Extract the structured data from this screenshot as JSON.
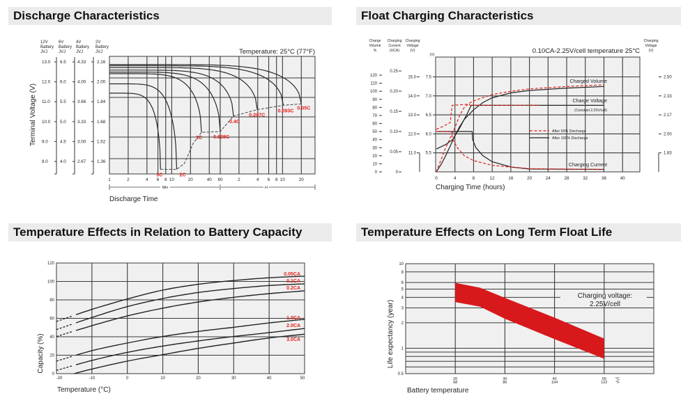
{
  "headers": {
    "discharge": "Discharge Characteristics",
    "float": "Float Charging Characteristics",
    "temp_capacity": "Temperature Effects in Relation to Battery Capacity",
    "float_life": "Temperature Effects on Long Term Float Life"
  },
  "chart_data": [
    {
      "type": "line",
      "title": "Temperature: 25°C (77°F)",
      "xlabel": "Discharge Time",
      "ylabel": "Terminal Voltage (V)",
      "x_scale": "log",
      "x_unit": "minutes",
      "x_tick_labels": [
        "1",
        "2",
        "4",
        "6",
        "8",
        "10",
        "20",
        "40",
        "60",
        "2",
        "4",
        "6",
        "8",
        "10",
        "20"
      ],
      "x_range_labels": [
        "Min",
        "H"
      ],
      "y_columns": [
        {
          "header": [
            "12V",
            "Battery",
            "JVJ"
          ],
          "ticks": [
            "13.0",
            "12.0",
            "11.0",
            "10.0",
            "9.0",
            "8.0"
          ]
        },
        {
          "header": [
            "6V",
            "Battery",
            "JVJ"
          ],
          "ticks": [
            "6.5",
            "6.0",
            "5.5",
            "5.0",
            "4.5",
            "4.0"
          ]
        },
        {
          "header": [
            "4V",
            "Battery",
            "JVJ"
          ],
          "ticks": [
            "4.33",
            "4.00",
            "3.66",
            "3.33",
            "3.00",
            "2.67"
          ]
        },
        {
          "header": [
            "2V",
            "Battery",
            "JVJ"
          ],
          "ticks": [
            "2.16",
            "2.00",
            "1.84",
            "1.68",
            "1.52",
            "1.36"
          ]
        }
      ],
      "ylim": [
        7.4,
        13.2
      ],
      "grid": true,
      "series": [
        {
          "name": "3C",
          "start_voltage": 11.43,
          "end_time_min": 6.6,
          "end_voltage": 7.6
        },
        {
          "name": "2C",
          "start_voltage": 11.9,
          "end_time_min": 12,
          "end_voltage": 7.6
        },
        {
          "name": "1C",
          "start_voltage": 12.41,
          "end_time_min": 30,
          "end_voltage": 9.46
        },
        {
          "name": "0.628C",
          "start_voltage": 12.49,
          "end_time_min": 60,
          "end_voltage": 9.5
        },
        {
          "name": "0.4C",
          "start_voltage": 12.59,
          "end_time_min": 98,
          "end_voltage": 10.28
        },
        {
          "name": "0.207C",
          "start_voltage": 12.72,
          "end_time_min": 236,
          "end_voltage": 10.6
        },
        {
          "name": "0.093C",
          "start_voltage": 12.81,
          "end_time_min": 617,
          "end_voltage": 10.82
        },
        {
          "name": "0.05C",
          "start_voltage": 12.87,
          "end_time_min": 1200,
          "end_voltage": 10.89
        }
      ],
      "cutoff_line": [
        [
          6.6,
          7.6
        ],
        [
          12,
          7.6
        ],
        [
          16,
          7.9
        ],
        [
          22,
          8.9
        ],
        [
          30,
          9.46
        ],
        [
          60,
          9.5
        ],
        [
          98,
          10.28
        ],
        [
          236,
          10.6
        ],
        [
          617,
          10.82
        ],
        [
          1200,
          10.89
        ]
      ],
      "label_color": "#e32119"
    },
    {
      "type": "line",
      "title": "0.10CA-2.25V/cell  temperature 25°C",
      "xlabel": "Charging Time (hours)",
      "xlim": [
        0,
        44
      ],
      "x_ticks": [
        "0",
        "4",
        "8",
        "12",
        "16",
        "20",
        "24",
        "28",
        "32",
        "36",
        "40"
      ],
      "axes": {
        "charge_volume": {
          "header": [
            "Charge",
            "Volume",
            "%"
          ],
          "ticks": [
            "0",
            "10",
            "20",
            "30",
            "40",
            "50",
            "60",
            "70",
            "80",
            "90",
            "100",
            "110",
            "120"
          ]
        },
        "charging_current": {
          "header": [
            "Charging",
            "Current",
            "(XCA)"
          ],
          "ticks": [
            "0",
            "0.05",
            "0.10",
            "0.15",
            "0.20",
            "0.25"
          ]
        },
        "charging_voltage_12v": {
          "header": [
            "Charging",
            "Voltage",
            "(V)"
          ],
          "ticks": [
            "11.0",
            "12.0",
            "13.0",
            "14.0",
            "15.0"
          ]
        },
        "charging_voltage_6v": {
          "header": [
            "(V)"
          ],
          "ticks": [
            "5.5",
            "6.0",
            "6.5",
            "7.0",
            "7.5"
          ]
        },
        "charging_voltage_cell": {
          "header": [
            "Charging",
            "Voltage",
            "(V)"
          ],
          "ticks": [
            "1.83",
            "2.00",
            "2.17",
            "2.33",
            "2.50"
          ]
        }
      },
      "curve_labels": {
        "volume": "Charged Volume",
        "voltage": "Charge Voltage",
        "voltage_note": "(Constant 2.25V/cell)",
        "current": "Charging Current"
      },
      "legend": [
        {
          "name": "After  50% Discharge",
          "color": "#e32119",
          "style": "dashed"
        },
        {
          "name": "After 100% Discharge",
          "color": "#222222",
          "style": "solid"
        }
      ],
      "legend_placement": "center-right",
      "series": [
        {
          "curve": "charged_volume_pct",
          "legend": 1,
          "points": [
            [
              0,
              0
            ],
            [
              1,
              9
            ],
            [
              2,
              20
            ],
            [
              3,
              32
            ],
            [
              4,
              45
            ],
            [
              5,
              56
            ],
            [
              6,
              65
            ],
            [
              8,
              77
            ],
            [
              10,
              86
            ],
            [
              12,
              92
            ],
            [
              16,
              98
            ],
            [
              20,
              101
            ],
            [
              28,
              104
            ],
            [
              36,
              106
            ]
          ]
        },
        {
          "curve": "charged_volume_pct",
          "legend": 0,
          "points": [
            [
              0,
              0
            ],
            [
              1,
              15
            ],
            [
              2,
              30
            ],
            [
              3,
              42
            ],
            [
              4,
              55
            ],
            [
              5,
              70
            ],
            [
              6,
              80
            ],
            [
              7,
              85
            ],
            [
              8,
              88
            ],
            [
              12,
              96
            ],
            [
              16,
              100
            ],
            [
              20,
              103
            ],
            [
              28,
              106
            ],
            [
              36,
              108
            ]
          ]
        },
        {
          "curve": "charge_voltage_6v",
          "legend": 1,
          "points": [
            [
              0,
              5.6
            ],
            [
              2,
              5.72
            ],
            [
              3.5,
              5.85
            ],
            [
              5,
              6.15
            ],
            [
              6.5,
              6.5
            ],
            [
              7.5,
              6.75
            ],
            [
              36,
              6.75
            ]
          ]
        },
        {
          "curve": "charge_voltage_6v",
          "legend": 0,
          "points": [
            [
              0,
              6.12
            ],
            [
              1.5,
              6.2
            ],
            [
              3,
              6.3
            ],
            [
              3.4,
              6.75
            ],
            [
              7,
              6.78
            ],
            [
              7.3,
              6.75
            ],
            [
              22,
              6.75
            ]
          ]
        },
        {
          "curve": "charging_current_ca",
          "legend": 1,
          "points": [
            [
              0,
              0.1
            ],
            [
              7.7,
              0.1
            ],
            [
              7.8,
              0.08
            ],
            [
              8.5,
              0.06
            ],
            [
              10,
              0.04
            ],
            [
              12,
              0.025
            ],
            [
              16,
              0.012
            ],
            [
              20,
              0.007
            ],
            [
              36,
              0.006
            ]
          ]
        },
        {
          "curve": "charging_current_ca",
          "legend": 0,
          "points": [
            [
              0,
              0.1
            ],
            [
              3.2,
              0.1
            ],
            [
              3.6,
              0.08
            ],
            [
              4.5,
              0.06
            ],
            [
              6,
              0.04
            ],
            [
              8,
              0.028
            ],
            [
              12,
              0.016
            ],
            [
              20,
              0.008
            ],
            [
              36,
              0.006
            ]
          ]
        }
      ],
      "grid": true
    },
    {
      "type": "line",
      "xlabel": "Temperature (°C)",
      "ylabel": "Capacity (%)",
      "xlim": [
        -20,
        50
      ],
      "ylim": [
        0,
        120
      ],
      "x_ticks": [
        "-20",
        "-10",
        "0",
        "10",
        "20",
        "30",
        "40",
        "50"
      ],
      "y_ticks": [
        "0",
        "20",
        "40",
        "60",
        "80",
        "100",
        "120"
      ],
      "grid": true,
      "dashed_below": -15,
      "label_color": "#e32119",
      "x": [
        -20,
        -10,
        0,
        10,
        20,
        30,
        40,
        50
      ],
      "series": [
        {
          "name": "0.05CA",
          "values": [
            56.6,
            69.7,
            81,
            90.6,
            96.9,
            101,
            104,
            105.7
          ]
        },
        {
          "name": "0.1CA",
          "values": [
            47.8,
            60.9,
            72.7,
            81.5,
            88,
            92.3,
            95.6,
            97.4
          ]
        },
        {
          "name": "0.2CA",
          "values": [
            40.3,
            52,
            62.6,
            71,
            77.7,
            82.8,
            86.8,
            89.8
          ]
        },
        {
          "name": "1.0CA",
          "values": [
            13.6,
            24.9,
            33.2,
            40.3,
            45.8,
            50.3,
            55,
            58.9
          ]
        },
        {
          "name": "2.0CA",
          "values": [
            3.5,
            14.3,
            23.1,
            29.9,
            35.5,
            40.3,
            44.5,
            49
          ]
        },
        {
          "name": "3.0CA",
          "values": [
            null,
            5,
            13.6,
            20.6,
            27.4,
            33.2,
            38.7,
            42.8
          ],
          "start": [
            -15,
            0
          ]
        }
      ]
    },
    {
      "type": "area",
      "xlabel": "Battery temperature",
      "ylabel": "Life expectancy (year)",
      "y_scale": "log",
      "xlim": [
        10,
        60
      ],
      "ylim": [
        0.5,
        10
      ],
      "y_ticks": [
        "0.5",
        "1",
        "2",
        "3",
        "4",
        "5",
        "6",
        "8",
        "10"
      ],
      "x_ticks": [
        {
          "c": "20",
          "f": "68"
        },
        {
          "c": "30",
          "f": "86"
        },
        {
          "c": "40",
          "f": "104"
        },
        {
          "c": "50",
          "f": "122"
        }
      ],
      "x_units": {
        "c": "°C",
        "f": "°F"
      },
      "annotation": [
        "Charging voltage:",
        "2.25V/cell"
      ],
      "band_color": "#d7191c",
      "x": [
        20,
        25,
        30,
        40,
        50
      ],
      "upper": [
        5.93,
        5.2,
        3.94,
        2.3,
        1.3
      ],
      "lower": [
        3.52,
        3.1,
        2.23,
        1.28,
        0.75
      ],
      "grid": true
    }
  ]
}
